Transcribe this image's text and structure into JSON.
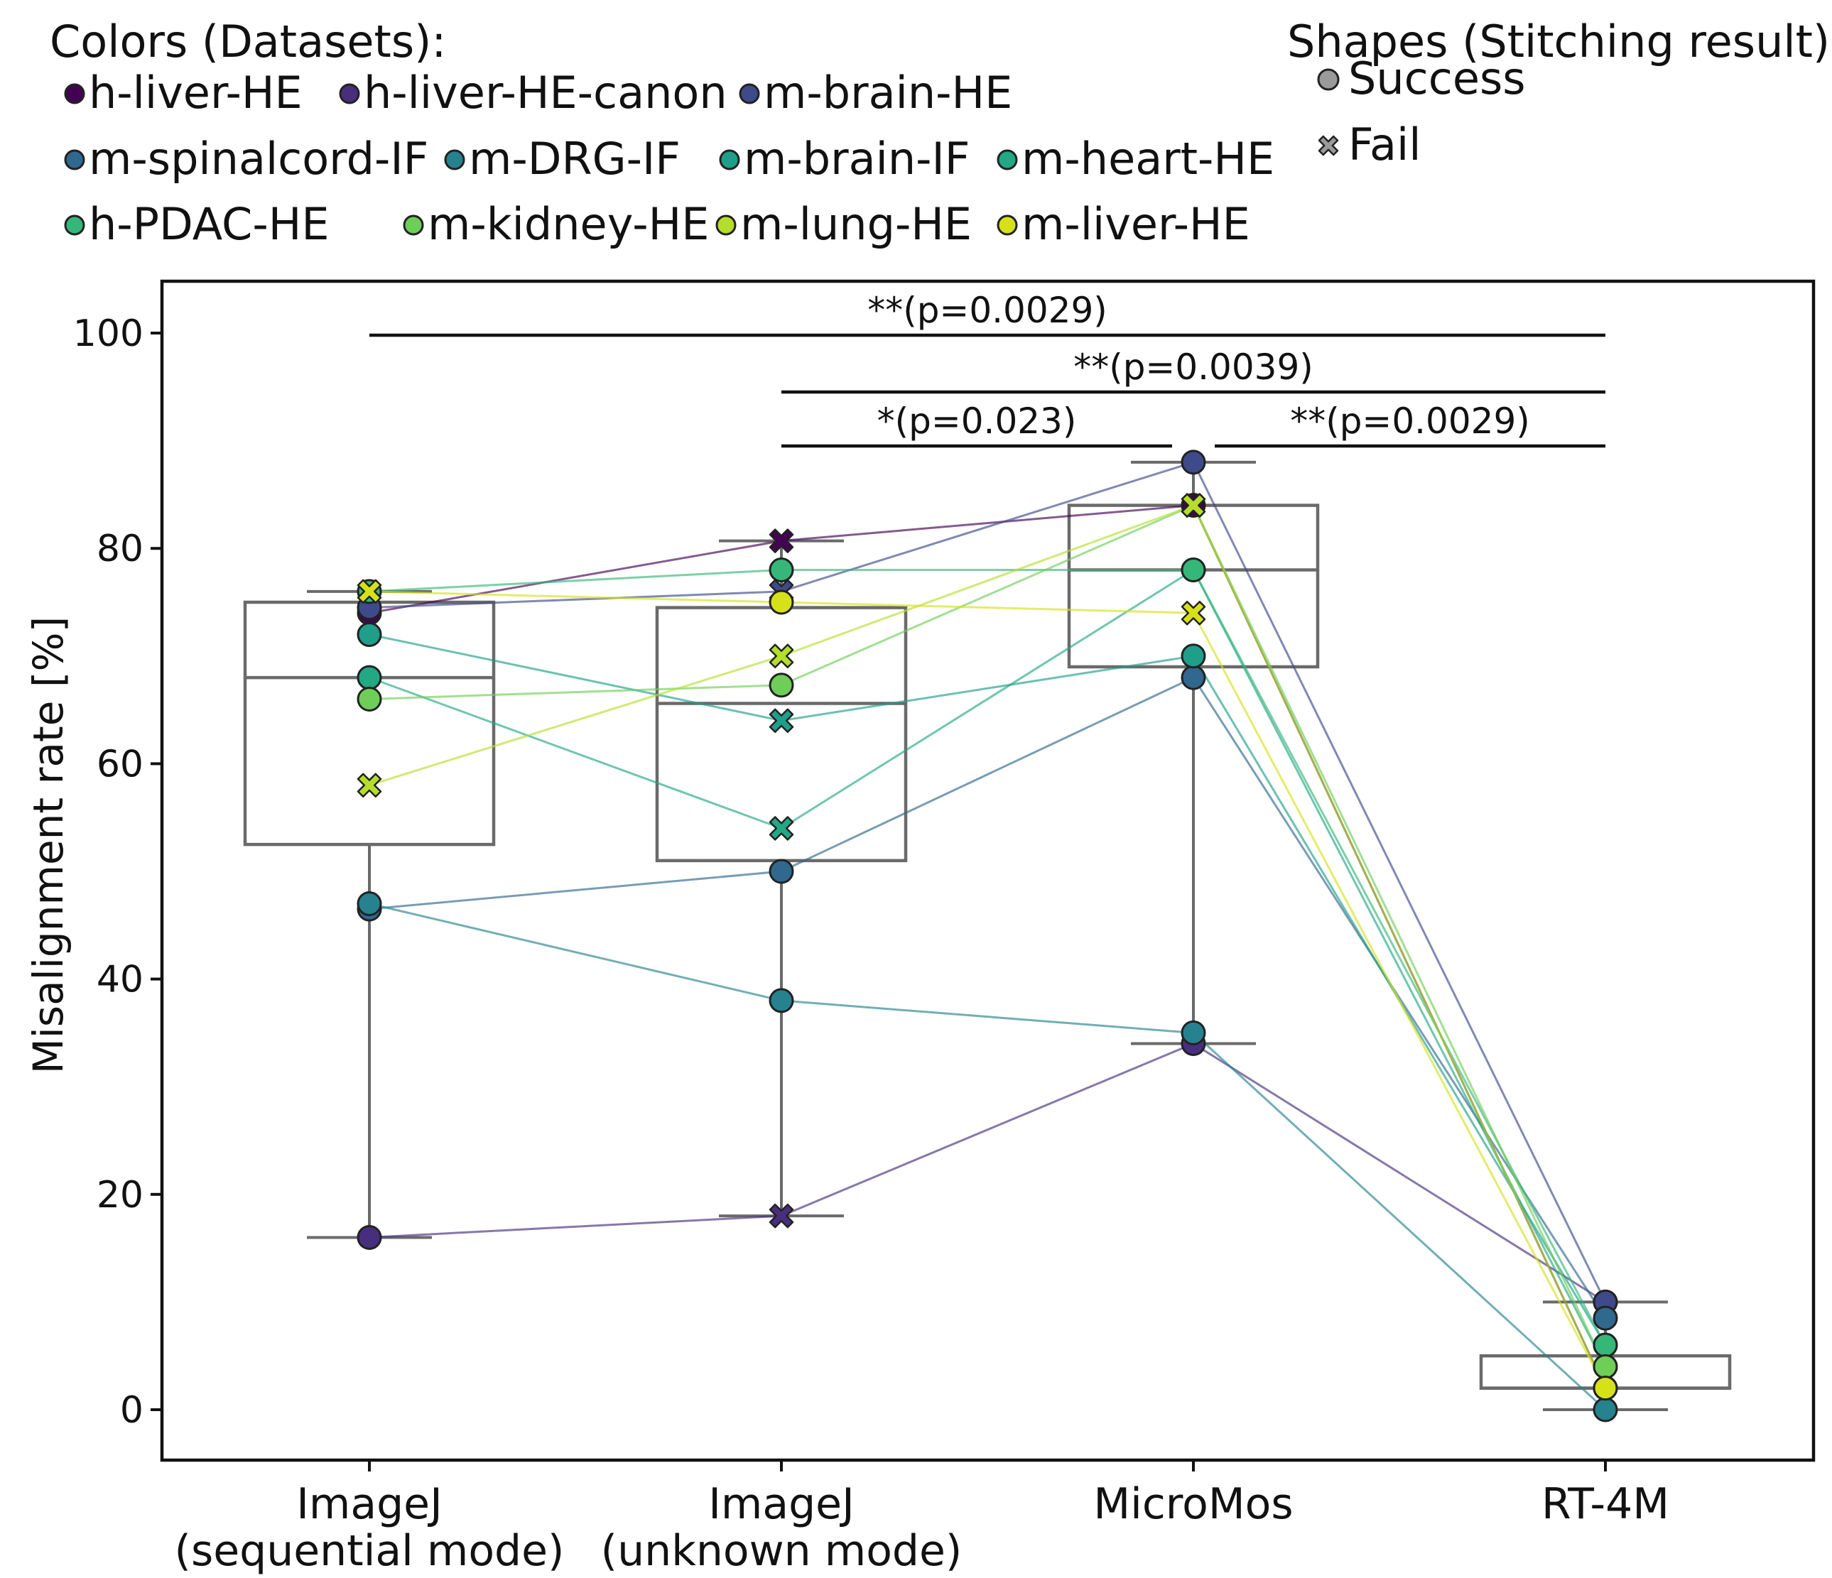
{
  "chart_data": {
    "type": "box",
    "categories": [
      "ImageJ\n(sequential mode)",
      "ImageJ\n(unknown mode)",
      "MicroMos",
      "RT-4M"
    ],
    "ylabel": "Misalignment rate [%]",
    "ylim": [
      -4.5,
      105
    ],
    "yticks": [
      0,
      20,
      40,
      60,
      80,
      100
    ],
    "legend_colors_title": "Colors (Datasets):",
    "legend_shapes_title": "Shapes (Stitching result):",
    "shapes": [
      {
        "name": "Success",
        "marker": "circle"
      },
      {
        "name": "Fail",
        "marker": "x"
      }
    ],
    "datasets": [
      {
        "name": "h-liver-HE",
        "color": "#440154"
      },
      {
        "name": "h-liver-HE-canon",
        "color": "#472f7d"
      },
      {
        "name": "m-brain-HE",
        "color": "#3e4a89"
      },
      {
        "name": "m-spinalcord-IF",
        "color": "#31688e"
      },
      {
        "name": "m-DRG-IF",
        "color": "#26828e"
      },
      {
        "name": "m-brain-IF",
        "color": "#1f9e89"
      },
      {
        "name": "m-heart-HE",
        "color": "#22a884"
      },
      {
        "name": "h-PDAC-HE",
        "color": "#35b779"
      },
      {
        "name": "m-kidney-HE",
        "color": "#6ece58"
      },
      {
        "name": "m-lung-HE",
        "color": "#b5de2b"
      },
      {
        "name": "m-liver-HE",
        "color": "#d5e21a"
      }
    ],
    "boxes": [
      {
        "whisker_low": 16,
        "q1": 52.5,
        "median": 68,
        "q3": 75,
        "whisker_high": 76
      },
      {
        "whisker_low": 18,
        "q1": 51,
        "median": 65.6,
        "q3": 74.5,
        "whisker_high": 80.7
      },
      {
        "whisker_low": 34,
        "q1": 69,
        "median": 78,
        "q3": 84,
        "whisker_high": 88
      },
      {
        "whisker_low": 0,
        "q1": 2,
        "median": 2,
        "q3": 5,
        "whisker_high": 10
      }
    ],
    "series": [
      {
        "name": "h-liver-HE",
        "values": [
          74,
          80.7,
          84,
          2
        ],
        "markers": [
          "circle",
          "x",
          "circle",
          "circle"
        ]
      },
      {
        "name": "h-liver-HE-canon",
        "values": [
          16,
          18,
          34,
          10
        ],
        "markers": [
          "circle",
          "x",
          "circle",
          "circle"
        ]
      },
      {
        "name": "m-brain-HE",
        "values": [
          74.5,
          76,
          88,
          10
        ],
        "markers": [
          "circle",
          "x",
          "circle",
          "circle"
        ]
      },
      {
        "name": "m-spinalcord-IF",
        "values": [
          46.5,
          50,
          68,
          8.5
        ],
        "markers": [
          "circle",
          "circle",
          "circle",
          "circle"
        ]
      },
      {
        "name": "m-DRG-IF",
        "values": [
          47,
          38,
          35,
          0
        ],
        "markers": [
          "circle",
          "circle",
          "circle",
          "circle"
        ]
      },
      {
        "name": "m-brain-IF",
        "values": [
          72,
          64,
          70,
          6
        ],
        "markers": [
          "circle",
          "x",
          "circle",
          "circle"
        ]
      },
      {
        "name": "m-heart-HE",
        "values": [
          68,
          54,
          78,
          4
        ],
        "markers": [
          "circle",
          "x",
          "circle",
          "circle"
        ]
      },
      {
        "name": "h-PDAC-HE",
        "values": [
          76,
          78,
          78,
          6
        ],
        "markers": [
          "circle",
          "circle",
          "circle",
          "circle"
        ]
      },
      {
        "name": "m-kidney-HE",
        "values": [
          66,
          67.3,
          84,
          4
        ],
        "markers": [
          "circle",
          "circle",
          "x",
          "circle"
        ]
      },
      {
        "name": "m-lung-HE",
        "values": [
          58,
          70,
          84,
          2
        ],
        "markers": [
          "x",
          "x",
          "x",
          "circle"
        ]
      },
      {
        "name": "m-liver-HE",
        "values": [
          76,
          75,
          74,
          2
        ],
        "markers": [
          "x",
          "circle",
          "x",
          "circle"
        ]
      }
    ],
    "significance": [
      {
        "from": 0,
        "to": 3,
        "label": "**(p=0.0029)"
      },
      {
        "from": 1,
        "to": 3,
        "label": "**(p=0.0039)"
      },
      {
        "from": 1,
        "to": 2,
        "label": "*(p=0.023)"
      },
      {
        "from": 2,
        "to": 3,
        "label": "**(p=0.0029)"
      }
    ]
  }
}
